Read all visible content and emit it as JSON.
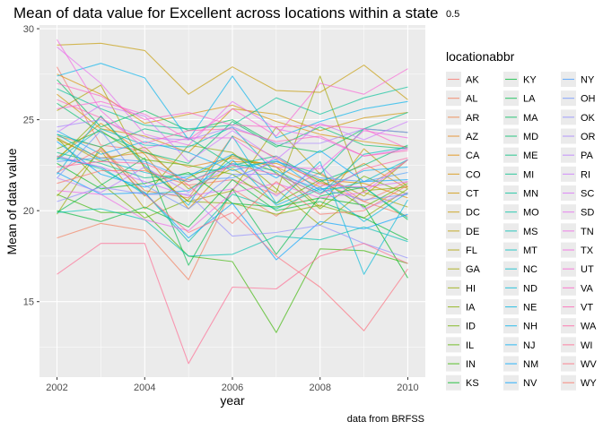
{
  "chart_data": {
    "type": "line",
    "title": "Mean of data value for Excellent across locations within a state",
    "title_overlap": "0.5",
    "xlabel": "year",
    "ylabel": "Mean of data value",
    "caption": "data from BRFSS",
    "legend_title": "locationabbr",
    "legend_placement": "right",
    "grid": true,
    "x_ticks": [
      "2002",
      "2004",
      "2006",
      "2008",
      "2010"
    ],
    "y_ticks": [
      "15",
      "20",
      "25",
      "30"
    ],
    "xlim": [
      2001.6,
      2010.4
    ],
    "ylim": [
      10.85,
      30.2
    ],
    "x": [
      2002,
      2003,
      2004,
      2005,
      2006,
      2007,
      2008,
      2009,
      2010
    ],
    "series": [
      {
        "name": "AK",
        "color": "#F8766D",
        "values": [
          27.9,
          23.6,
          23.3,
          21.4,
          21.7,
          20.9,
          22.1,
          20.5,
          21.6
        ]
      },
      {
        "name": "AL",
        "color": "#F37B59",
        "values": [
          18.5,
          19.3,
          18.9,
          16.2,
          21.2,
          19.7,
          21.6,
          20.5,
          19.7
        ]
      },
      {
        "name": "AR",
        "color": "#ED8141",
        "values": [
          24.1,
          23.5,
          21.1,
          20.7,
          24.1,
          22.9,
          21.5,
          21.2,
          22.8
        ]
      },
      {
        "name": "AZ",
        "color": "#E7861B",
        "values": [
          23.9,
          22.9,
          23.2,
          22.4,
          22.9,
          22.4,
          21.3,
          22.6,
          21.2
        ]
      },
      {
        "name": "CA",
        "color": "#E08B00",
        "values": [
          22.9,
          24.8,
          23.1,
          20.1,
          22.7,
          22.6,
          21.7,
          21.5,
          20.7
        ]
      },
      {
        "name": "CO",
        "color": "#D89000",
        "values": [
          27.5,
          26.4,
          24.8,
          25.3,
          25.8,
          24.9,
          24.2,
          23.8,
          23.5
        ]
      },
      {
        "name": "CT",
        "color": "#CF9400",
        "values": [
          26.4,
          24.5,
          24.1,
          23.2,
          25.6,
          25.3,
          24.4,
          25.1,
          25.4
        ]
      },
      {
        "name": "DC",
        "color": "#C59900",
        "values": [
          29.1,
          29.2,
          28.8,
          26.4,
          27.9,
          26.6,
          26.5,
          28.0,
          26.1
        ]
      },
      {
        "name": "DE",
        "color": "#BB9D00",
        "values": [
          20.8,
          23.3,
          20.1,
          21.8,
          23.0,
          22.4,
          20.2,
          23.4,
          21.3
        ]
      },
      {
        "name": "FL",
        "color": "#AFA100",
        "values": [
          25.5,
          26.9,
          22.3,
          20.5,
          21.1,
          24.6,
          22.0,
          20.8,
          22.8
        ]
      },
      {
        "name": "GA",
        "color": "#A3A500",
        "values": [
          24.0,
          22.7,
          23.5,
          21.2,
          22.3,
          21.0,
          27.4,
          21.0,
          20.2
        ]
      },
      {
        "name": "HI",
        "color": "#95A900",
        "values": [
          19.8,
          23.5,
          20.8,
          23.6,
          23.2,
          21.2,
          19.2,
          21.1,
          21.3
        ]
      },
      {
        "name": "IA",
        "color": "#85AD00",
        "values": [
          22.8,
          25.2,
          22.4,
          20.5,
          20.4,
          19.8,
          20.3,
          19.6,
          21.2
        ]
      },
      {
        "name": "ID",
        "color": "#72B000",
        "values": [
          24.0,
          21.5,
          19.6,
          20.6,
          23.1,
          22.1,
          20.1,
          21.9,
          20.9
        ]
      },
      {
        "name": "IL",
        "color": "#5BB300",
        "values": [
          23.4,
          24.4,
          22.8,
          22.5,
          22.0,
          20.4,
          21.7,
          20.2,
          21.5
        ]
      },
      {
        "name": "IN",
        "color": "#39B600",
        "values": [
          20.9,
          19.9,
          19.9,
          17.5,
          17.2,
          13.3,
          17.9,
          17.8,
          17.1
        ]
      },
      {
        "name": "KS",
        "color": "#00B81F",
        "values": [
          22.6,
          21.2,
          21.5,
          22.1,
          20.4,
          20.2,
          20.7,
          20.3,
          16.3
        ]
      },
      {
        "name": "KY",
        "color": "#00BA38",
        "values": [
          20.0,
          19.4,
          20.2,
          19.1,
          21.7,
          20.0,
          20.5,
          19.6,
          18.4
        ]
      },
      {
        "name": "LA",
        "color": "#00BC4C",
        "values": [
          19.9,
          21.4,
          22.9,
          17.0,
          21.2,
          17.6,
          20.8,
          21.3,
          19.5
        ]
      },
      {
        "name": "MA",
        "color": "#00BD5C",
        "values": [
          27.2,
          24.6,
          25.5,
          24.4,
          25.0,
          23.6,
          23.2,
          24.5,
          24.3
        ]
      },
      {
        "name": "MD",
        "color": "#00BF6C",
        "values": [
          25.9,
          24.3,
          23.2,
          22.6,
          24.9,
          23.5,
          24.6,
          23.6,
          23.4
        ]
      },
      {
        "name": "ME",
        "color": "#00C07B",
        "values": [
          24.2,
          23.5,
          24.5,
          24.0,
          22.5,
          23.0,
          21.6,
          22.5,
          23.6
        ]
      },
      {
        "name": "MI",
        "color": "#00C08A",
        "values": [
          23.2,
          22.6,
          21.8,
          22.0,
          22.4,
          22.7,
          22.0,
          24.5,
          25.4
        ]
      },
      {
        "name": "MN",
        "color": "#00C198",
        "values": [
          26.7,
          25.6,
          24.7,
          24.5,
          24.7,
          26.2,
          25.3,
          26.2,
          26.8
        ]
      },
      {
        "name": "MO",
        "color": "#00C1A5",
        "values": [
          23.0,
          22.3,
          21.0,
          18.3,
          20.9,
          20.1,
          21.2,
          21.3,
          19.6
        ]
      },
      {
        "name": "MS",
        "color": "#00C0B2",
        "values": [
          19.9,
          20.1,
          19.5,
          17.5,
          17.6,
          18.6,
          18.4,
          19.1,
          18.3
        ]
      },
      {
        "name": "MT",
        "color": "#00BFBF",
        "values": [
          22.8,
          24.5,
          23.6,
          23.5,
          24.6,
          22.0,
          20.9,
          23.1,
          23.5
        ]
      },
      {
        "name": "NC",
        "color": "#00BCCB",
        "values": [
          24.2,
          22.8,
          22.1,
          21.6,
          22.6,
          22.2,
          21.0,
          21.6,
          22.8
        ]
      },
      {
        "name": "ND",
        "color": "#00B9D7",
        "values": [
          22.0,
          25.2,
          22.5,
          20.3,
          24.1,
          20.4,
          22.7,
          16.5,
          20.6
        ]
      },
      {
        "name": "NE",
        "color": "#00B6E2",
        "values": [
          22.9,
          22.4,
          20.9,
          21.1,
          22.8,
          20.3,
          21.3,
          19.4,
          21.0
        ]
      },
      {
        "name": "NH",
        "color": "#00B2EC",
        "values": [
          27.4,
          28.1,
          27.3,
          23.9,
          27.4,
          24.0,
          24.9,
          25.6,
          26.0
        ]
      },
      {
        "name": "NJ",
        "color": "#00ADF5",
        "values": [
          24.4,
          23.1,
          23.8,
          23.2,
          22.2,
          22.8,
          21.1,
          22.2,
          22.4
        ]
      },
      {
        "name": "NM",
        "color": "#00A8FD",
        "values": [
          23.8,
          22.0,
          21.3,
          21.9,
          23.1,
          21.8,
          23.3,
          21.6,
          21.7
        ]
      },
      {
        "name": "NV",
        "color": "#00A2FF",
        "values": [
          22.1,
          20.9,
          21.0,
          18.5,
          20.4,
          17.3,
          19.4,
          19.0,
          19.8
        ]
      },
      {
        "name": "NY",
        "color": "#449BFF",
        "values": [
          22.7,
          22.9,
          22.7,
          21.7,
          21.8,
          22.7,
          21.8,
          21.6,
          22.1
        ]
      },
      {
        "name": "OH",
        "color": "#7094FF",
        "values": [
          21.8,
          24.4,
          21.4,
          20.1,
          22.0,
          22.0,
          21.2,
          20.6,
          20.9
        ]
      },
      {
        "name": "OK",
        "color": "#8F8CFF",
        "values": [
          20.5,
          21.3,
          20.9,
          20.9,
          18.6,
          18.8,
          19.2,
          18.2,
          17.4
        ]
      },
      {
        "name": "OR",
        "color": "#A784FF",
        "values": [
          24.6,
          25.0,
          24.0,
          23.9,
          24.6,
          23.7,
          23.7,
          24.5,
          24.3
        ]
      },
      {
        "name": "PA",
        "color": "#BB7CFF",
        "values": [
          21.8,
          21.0,
          22.4,
          21.0,
          22.6,
          20.8,
          22.5,
          20.1,
          21.0
        ]
      },
      {
        "name": "RI",
        "color": "#CC75FF",
        "values": [
          24.3,
          25.8,
          25.2,
          22.7,
          24.4,
          22.8,
          24.8,
          23.9,
          24.9
        ]
      },
      {
        "name": "SC",
        "color": "#DA6FF9",
        "values": [
          23.0,
          22.4,
          21.6,
          20.8,
          21.2,
          23.0,
          21.4,
          21.3,
          21.6
        ]
      },
      {
        "name": "SD",
        "color": "#E56BF0",
        "values": [
          29.0,
          27.0,
          24.2,
          23.6,
          26.0,
          24.5,
          24.0,
          23.0,
          23.4
        ]
      },
      {
        "name": "TN",
        "color": "#EE67E6",
        "values": [
          21.1,
          20.9,
          19.5,
          18.9,
          21.0,
          21.5,
          20.7,
          21.0,
          22.8
        ]
      },
      {
        "name": "TX",
        "color": "#F564E3",
        "values": [
          29.4,
          25.5,
          23.4,
          24.0,
          24.0,
          22.4,
          22.3,
          24.4,
          24.0
        ]
      },
      {
        "name": "UT",
        "color": "#FA62D5",
        "values": [
          25.6,
          26.0,
          25.3,
          23.9,
          25.6,
          24.1,
          27.0,
          26.4,
          27.8
        ]
      },
      {
        "name": "VA",
        "color": "#FD61C6",
        "values": [
          27.0,
          26.3,
          25.0,
          25.4,
          24.7,
          24.6,
          24.7,
          24.5,
          23.4
        ]
      },
      {
        "name": "VT",
        "color": "#FF62B6",
        "values": [
          26.1,
          25.1,
          23.7,
          24.4,
          24.5,
          23.8,
          24.1,
          23.0,
          23.3
        ]
      },
      {
        "name": "WA",
        "color": "#FF64A4",
        "values": [
          22.4,
          22.7,
          22.6,
          21.6,
          22.5,
          22.0,
          20.9,
          22.3,
          22.9
        ]
      },
      {
        "name": "WI",
        "color": "#FF6891",
        "values": [
          16.5,
          18.2,
          18.2,
          11.6,
          15.8,
          15.7,
          17.5,
          18.2,
          17.1
        ]
      },
      {
        "name": "WV",
        "color": "#FD6D7C",
        "values": [
          22.1,
          23.4,
          20.9,
          18.8,
          19.9,
          17.5,
          15.8,
          13.4,
          16.8
        ]
      },
      {
        "name": "WY",
        "color": "#FA7366",
        "values": [
          21.5,
          22.2,
          22.2,
          21.4,
          19.3,
          21.6,
          19.8,
          20.0,
          21.4
        ]
      }
    ]
  }
}
